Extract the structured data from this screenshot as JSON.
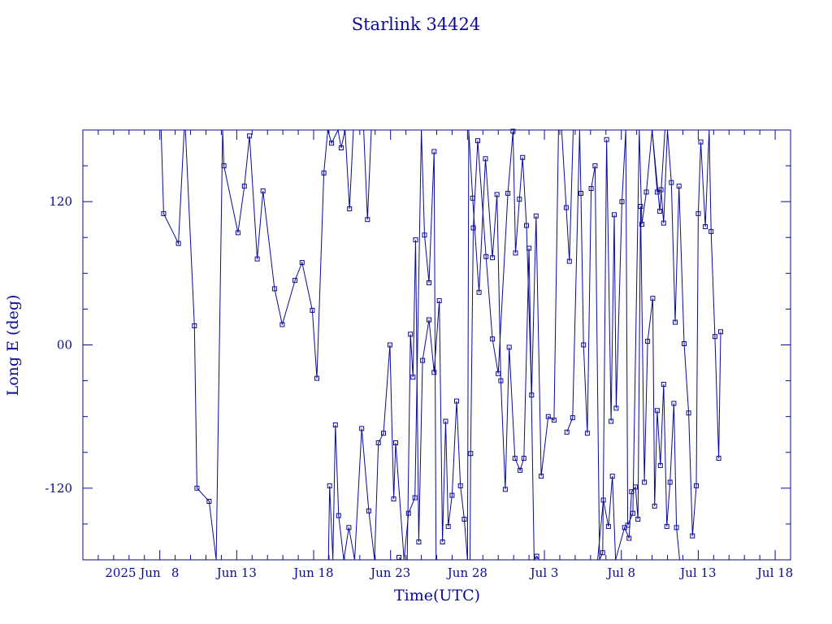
{
  "chart_data": {
    "type": "scatter",
    "title": "Starlink 34424",
    "xlabel": "Time(UTC)",
    "ylabel": "Long E (deg)",
    "xlim": [
      "2025-06-03",
      "2025-07-19"
    ],
    "ylim": [
      -180,
      180
    ],
    "x_ticks": [
      "2025 Jun",
      "8",
      "Jun 13",
      "Jun 18",
      "Jun 23",
      "Jun 28",
      "Jul 3",
      "Jul 8",
      "Jul 13",
      "Jul 18"
    ],
    "y_ticks": [
      "120",
      "00",
      "-120"
    ],
    "grid": false,
    "series": [
      {
        "marker": "square",
        "connected": true,
        "points": [
          [
            "2025-06-08 02:00",
            180
          ],
          [
            "2025-06-08 06:00",
            110
          ],
          [
            "2025-06-09 05:00",
            85
          ],
          [
            "2025-06-09 14:00",
            180
          ],
          [
            "2025-06-09 16:00",
            180
          ],
          [
            "2025-06-10 06:00",
            16
          ],
          [
            "2025-06-10 10:00",
            -120
          ],
          [
            "2025-06-11 05:00",
            -131
          ],
          [
            "2025-06-11 16:00",
            -180
          ],
          [
            "2025-06-12 02:00",
            180
          ],
          [
            "2025-06-12 04:00",
            150
          ],
          [
            "2025-06-13 02:00",
            94
          ],
          [
            "2025-06-13 12:00",
            133
          ],
          [
            "2025-06-13 20:00",
            175
          ],
          [
            "2025-06-14 08:00",
            72
          ],
          [
            "2025-06-14 17:00",
            129
          ],
          [
            "2025-06-15 11:00",
            47
          ],
          [
            "2025-06-15 23:00",
            17
          ],
          [
            "2025-06-16 19:00",
            54
          ],
          [
            "2025-06-17 06:00",
            69
          ],
          [
            "2025-06-17 22:00",
            29
          ],
          [
            "2025-06-18 05:00",
            -28
          ],
          [
            "2025-06-18 16:00",
            144
          ],
          [
            "2025-06-18 22:00",
            180
          ],
          [
            "2025-06-19 04:00",
            169
          ],
          [
            "2025-06-19 14:00",
            180
          ],
          [
            "2025-06-19 19:00",
            165
          ],
          [
            "2025-06-20 01:00",
            180
          ],
          [
            "2025-06-20 08:00",
            114
          ],
          [
            "2025-06-20 14:00",
            180
          ],
          [
            "2025-06-21 06:00",
            180
          ],
          [
            "2025-06-21 12:00",
            105
          ],
          [
            "2025-06-21 18:00",
            180
          ]
        ]
      },
      {
        "marker": "square",
        "connected": true,
        "points": [
          [
            "2025-06-18 23:00",
            -180
          ],
          [
            "2025-06-19 01:00",
            -118
          ],
          [
            "2025-06-19 06:00",
            -180
          ],
          [
            "2025-06-19 10:00",
            -67
          ],
          [
            "2025-06-19 15:00",
            -143
          ],
          [
            "2025-06-19 23:00",
            -180
          ],
          [
            "2025-06-20 07:00",
            -153
          ],
          [
            "2025-06-20 16:00",
            -180
          ],
          [
            "2025-06-21 03:00",
            -70
          ],
          [
            "2025-06-21 14:00",
            -139
          ],
          [
            "2025-06-21 23:00",
            -180
          ],
          [
            "2025-06-22 05:00",
            -82
          ],
          [
            "2025-06-22 13:00",
            -74
          ],
          [
            "2025-06-22 23:00",
            0
          ],
          [
            "2025-06-23 05:00",
            -129
          ],
          [
            "2025-06-23 08:00",
            -82
          ],
          [
            "2025-06-23 21:00",
            -180
          ],
          [
            "2025-06-24 04:00",
            -141
          ],
          [
            "2025-06-24 14:00",
            -128
          ],
          [
            "2025-06-25 00:00",
            180
          ],
          [
            "2025-06-25 05:00",
            92
          ],
          [
            "2025-06-25 12:00",
            52
          ],
          [
            "2025-06-25 20:00",
            162
          ],
          [
            "2025-06-25 23:00",
            -180
          ]
        ]
      },
      {
        "marker": "square",
        "connected": true,
        "points": [
          [
            "2025-06-23 13:00",
            -178
          ],
          [
            "2025-06-23 17:00",
            -180
          ],
          [
            "2025-06-24 02:00",
            -180
          ],
          [
            "2025-06-24 07:00",
            9
          ],
          [
            "2025-06-24 11:00",
            -27
          ],
          [
            "2025-06-24 15:00",
            88
          ],
          [
            "2025-06-24 20:00",
            -165
          ],
          [
            "2025-06-25 02:00",
            -13
          ],
          [
            "2025-06-25 12:00",
            21
          ],
          [
            "2025-06-25 20:00",
            -23
          ],
          [
            "2025-06-26 04:00",
            37
          ],
          [
            "2025-06-26 09:00",
            -165
          ],
          [
            "2025-06-26 14:00",
            -64
          ],
          [
            "2025-06-26 18:00",
            -152
          ],
          [
            "2025-06-27 00:00",
            -126
          ],
          [
            "2025-06-27 07:00",
            -47
          ],
          [
            "2025-06-27 13:00",
            -118
          ],
          [
            "2025-06-27 19:00",
            -146
          ],
          [
            "2025-06-28 00:00",
            -180
          ],
          [
            "2025-06-28 02:00",
            180
          ],
          [
            "2025-06-28 08:00",
            123
          ],
          [
            "2025-06-28 18:00",
            44
          ],
          [
            "2025-06-29 04:00",
            156
          ],
          [
            "2025-06-29 15:00",
            73
          ],
          [
            "2025-06-29 22:00",
            126
          ],
          [
            "2025-06-30 04:00",
            -30
          ],
          [
            "2025-06-30 11:00",
            -121
          ],
          [
            "2025-06-30 17:00",
            -2
          ],
          [
            "2025-07-01 02:00",
            -95
          ],
          [
            "2025-07-01 10:00",
            -105
          ],
          [
            "2025-07-01 16:00",
            -95
          ],
          [
            "2025-07-02 00:00",
            81
          ],
          [
            "2025-07-02 08:00",
            -180
          ],
          [
            "2025-07-02 12:00",
            -177
          ],
          [
            "2025-07-02 16:00",
            -180
          ]
        ]
      },
      {
        "marker": "square",
        "connected": true,
        "points": [
          [
            "2025-06-28 04:00",
            -180
          ],
          [
            "2025-06-28 05:00",
            -91
          ],
          [
            "2025-06-28 09:00",
            98
          ],
          [
            "2025-06-28 16:00",
            171
          ],
          [
            "2025-06-29 05:00",
            74
          ],
          [
            "2025-06-29 15:00",
            5
          ],
          [
            "2025-06-30 00:00",
            -24
          ],
          [
            "2025-06-30 15:00",
            127
          ],
          [
            "2025-06-30 23:00",
            179
          ],
          [
            "2025-07-01 03:00",
            77
          ],
          [
            "2025-07-01 09:00",
            122
          ],
          [
            "2025-07-01 14:00",
            157
          ],
          [
            "2025-07-01 20:00",
            100
          ],
          [
            "2025-07-02 04:00",
            -42
          ],
          [
            "2025-07-02 11:00",
            108
          ],
          [
            "2025-07-02 19:00",
            -110
          ],
          [
            "2025-07-03 06:00",
            -60
          ],
          [
            "2025-07-03 15:00",
            -63
          ],
          [
            "2025-07-03 22:00",
            180
          ],
          [
            "2025-07-04 03:00",
            182
          ],
          [
            "2025-07-04 10:00",
            115
          ],
          [
            "2025-07-04 15:00",
            70
          ],
          [
            "2025-07-04 21:00",
            180
          ]
        ]
      },
      {
        "marker": "square",
        "connected": true,
        "points": [
          [
            "2025-07-04 11:00",
            -73
          ],
          [
            "2025-07-04 20:00",
            -61
          ],
          [
            "2025-07-05 07:00",
            180
          ],
          [
            "2025-07-05 09:00",
            127
          ],
          [
            "2025-07-05 13:00",
            0
          ],
          [
            "2025-07-05 19:00",
            -74
          ],
          [
            "2025-07-06 01:00",
            131
          ],
          [
            "2025-07-06 07:00",
            150
          ],
          [
            "2025-07-06 14:00",
            -180
          ],
          [
            "2025-07-06 19:00",
            -174
          ],
          [
            "2025-07-07 01:00",
            172
          ],
          [
            "2025-07-07 08:00",
            -64
          ],
          [
            "2025-07-07 13:00",
            109
          ],
          [
            "2025-07-07 16:00",
            -53
          ],
          [
            "2025-07-08 01:00",
            120
          ],
          [
            "2025-07-08 07:00",
            180
          ],
          [
            "2025-07-08 10:00",
            -151
          ],
          [
            "2025-07-08 18:00",
            -141
          ],
          [
            "2025-07-09 04:00",
            180
          ],
          [
            "2025-07-09 08:00",
            101
          ],
          [
            "2025-07-09 15:00",
            128
          ],
          [
            "2025-07-10 00:00",
            180
          ],
          [
            "2025-07-10 12:00",
            112
          ],
          [
            "2025-07-10 20:00",
            180
          ]
        ]
      },
      {
        "marker": "square",
        "connected": true,
        "points": [
          [
            "2025-07-06 11:00",
            -180
          ],
          [
            "2025-07-06 20:00",
            -130
          ],
          [
            "2025-07-07 04:00",
            -152
          ],
          [
            "2025-07-07 10:00",
            -110
          ],
          [
            "2025-07-07 15:00",
            -180
          ],
          [
            "2025-07-08 05:00",
            -153
          ],
          [
            "2025-07-08 12:00",
            -162
          ],
          [
            "2025-07-08 16:00",
            -123
          ],
          [
            "2025-07-08 22:00",
            -119
          ],
          [
            "2025-07-09 02:00",
            -146
          ],
          [
            "2025-07-09 06:00",
            116
          ],
          [
            "2025-07-09 12:00",
            -115
          ],
          [
            "2025-07-09 17:00",
            3
          ],
          [
            "2025-07-10 01:00",
            39
          ],
          [
            "2025-07-10 04:00",
            -135
          ],
          [
            "2025-07-10 08:00",
            -55
          ],
          [
            "2025-07-10 13:00",
            -101
          ],
          [
            "2025-07-10 18:00",
            -33
          ],
          [
            "2025-07-10 23:00",
            -152
          ],
          [
            "2025-07-11 04:00",
            -115
          ],
          [
            "2025-07-11 10:00",
            -49
          ],
          [
            "2025-07-11 14:00",
            -153
          ],
          [
            "2025-07-11 19:00",
            -180
          ]
        ]
      },
      {
        "marker": "square",
        "connected": true,
        "points": [
          [
            "2025-07-10 00:00",
            180
          ],
          [
            "2025-07-10 08:00",
            128
          ],
          [
            "2025-07-10 14:00",
            130
          ],
          [
            "2025-07-10 18:00",
            102
          ],
          [
            "2025-07-11 00:00",
            180
          ],
          [
            "2025-07-11 06:00",
            136
          ],
          [
            "2025-07-11 12:00",
            19
          ],
          [
            "2025-07-11 18:00",
            133
          ],
          [
            "2025-07-12 02:00",
            1
          ],
          [
            "2025-07-12 09:00",
            -57
          ],
          [
            "2025-07-12 15:00",
            -160
          ],
          [
            "2025-07-12 21:00",
            -118
          ],
          [
            "2025-07-13 00:00",
            110
          ],
          [
            "2025-07-13 04:00",
            170
          ],
          [
            "2025-07-13 11:00",
            99
          ],
          [
            "2025-07-13 17:00",
            180
          ],
          [
            "2025-07-13 20:00",
            95
          ],
          [
            "2025-07-14 02:00",
            7
          ],
          [
            "2025-07-14 08:00",
            -95
          ],
          [
            "2025-07-14 11:00",
            11
          ]
        ]
      }
    ]
  }
}
